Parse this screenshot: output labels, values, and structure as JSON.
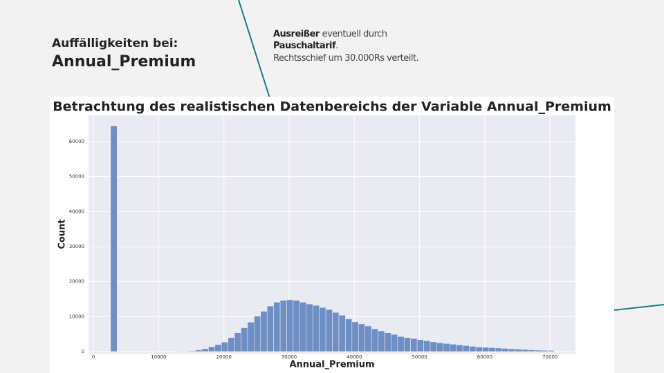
{
  "slide": {
    "heading": "Auffälligkeiten bei:",
    "variable": "Annual_Premium",
    "note": {
      "line1": [
        {
          "text": "Ausreißer",
          "bold": true
        },
        {
          "text": " eventuell durch",
          "bold": false
        }
      ],
      "line2": [
        {
          "text": "Pauschaltarif",
          "bold": true
        },
        {
          "text": ".",
          "bold": false
        }
      ],
      "line3": [
        {
          "text": "Rechtsschief um 30.000Rs verteilt.",
          "bold": false
        }
      ]
    }
  },
  "chart_data": {
    "type": "histogram",
    "title": "Betrachtung des realistischen Datenbereichs der Variable Annual_Premium",
    "x_label": "Annual_Premium",
    "y_label": "Count",
    "color": "#6e8fc3",
    "grid": true,
    "bins": [
      2630,
      3630,
      4630,
      5630,
      6630,
      7630,
      8630,
      9630,
      10630,
      11630,
      12630,
      13630,
      14630,
      15630,
      16630,
      17630,
      18630,
      19630,
      20630,
      21630,
      22630,
      23630,
      24630,
      25630,
      26630,
      27630,
      28630,
      29630,
      30630,
      31630,
      32630,
      33630,
      34630,
      35630,
      36630,
      37630,
      38630,
      39630,
      40630,
      41630,
      42630,
      43630,
      44630,
      45630,
      46630,
      47630,
      48630,
      49630,
      50630,
      51630,
      52630,
      53630,
      54630,
      55630,
      56630,
      57630,
      58630,
      59630,
      60630,
      61630,
      62630,
      63630,
      64630,
      65630,
      66630,
      67630,
      68630,
      69630,
      70630
    ],
    "values": [
      64500,
      0,
      0,
      0,
      0,
      0,
      0,
      0,
      0,
      0,
      30,
      80,
      200,
      450,
      800,
      1400,
      2000,
      2700,
      4000,
      5400,
      6800,
      8400,
      10100,
      11500,
      13000,
      14100,
      14600,
      14800,
      14600,
      14100,
      13600,
      13200,
      12600,
      12000,
      11200,
      10400,
      9300,
      8500,
      7900,
      7300,
      6500,
      5900,
      5400,
      4900,
      4300,
      4000,
      3700,
      3400,
      3100,
      2800,
      2500,
      2300,
      2100,
      1900,
      1700,
      1500,
      1300,
      1200,
      1100,
      1000,
      900,
      800,
      700,
      600,
      500,
      400,
      350,
      300
    ],
    "xlim": [
      -750,
      73900
    ],
    "ylim": [
      -600,
      67500
    ],
    "xticks": [
      0,
      10000,
      20000,
      30000,
      40000,
      50000,
      60000,
      70000
    ],
    "yticks": [
      0,
      10000,
      20000,
      30000,
      40000,
      50000,
      60000
    ]
  }
}
